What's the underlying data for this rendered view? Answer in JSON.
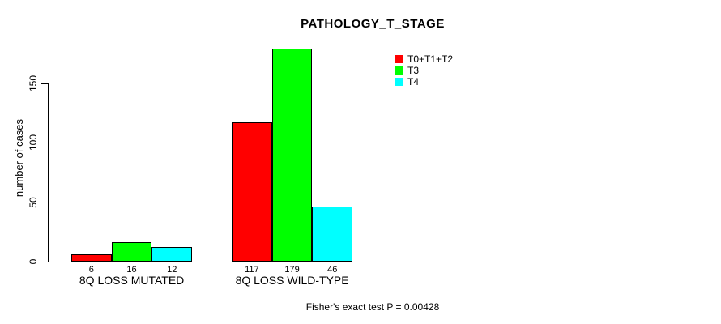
{
  "chart_data": {
    "type": "bar",
    "title": "PATHOLOGY_T_STAGE",
    "ylabel": "number of cases",
    "xlabel": "",
    "annotation": "Fisher's exact test P = 0.00428",
    "categories": [
      "8Q LOSS MUTATED",
      "8Q LOSS WILD-TYPE"
    ],
    "series": [
      {
        "name": "T0+T1+T2",
        "color": "#ff0000",
        "values": [
          6,
          117
        ]
      },
      {
        "name": "T3",
        "color": "#00ff00",
        "values": [
          16,
          179
        ]
      },
      {
        "name": "T4",
        "color": "#00ffff",
        "values": [
          12,
          46
        ]
      }
    ],
    "y_ticks": [
      0,
      50,
      100,
      150
    ],
    "ylim": [
      0,
      185
    ],
    "grid": false,
    "bar_value_labels": true,
    "legend_position": "top-right",
    "colors": {
      "background": "#ffffff",
      "axis": "#000000",
      "text": "#000000",
      "bar_border": "#000000"
    }
  }
}
